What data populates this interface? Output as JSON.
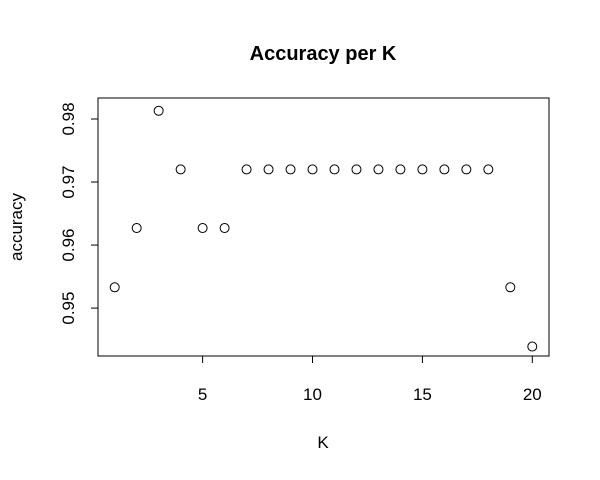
{
  "chart_data": {
    "type": "scatter",
    "title": "Accuracy per K",
    "xlabel": "K",
    "ylabel": "accuracy",
    "x": [
      1,
      2,
      3,
      4,
      5,
      6,
      7,
      8,
      9,
      10,
      11,
      12,
      13,
      14,
      15,
      16,
      17,
      18,
      19,
      20
    ],
    "y": [
      0.9533,
      0.9627,
      0.9813,
      0.972,
      0.9627,
      0.9627,
      0.972,
      0.972,
      0.972,
      0.972,
      0.972,
      0.972,
      0.972,
      0.972,
      0.972,
      0.972,
      0.972,
      0.972,
      0.9533,
      0.9439
    ],
    "xlim": [
      0.24,
      20.76
    ],
    "ylim": [
      0.9424,
      0.98333
    ],
    "xticks": [
      5,
      10,
      15,
      20
    ],
    "xtick_labels": [
      "5",
      "10",
      "15",
      "20"
    ],
    "yticks": [
      0.95,
      0.96,
      0.97,
      0.98
    ],
    "ytick_labels": [
      "0.95",
      "0.96",
      "0.97",
      "0.98"
    ],
    "marker": "open-circle",
    "grid": false,
    "legend": "none"
  }
}
